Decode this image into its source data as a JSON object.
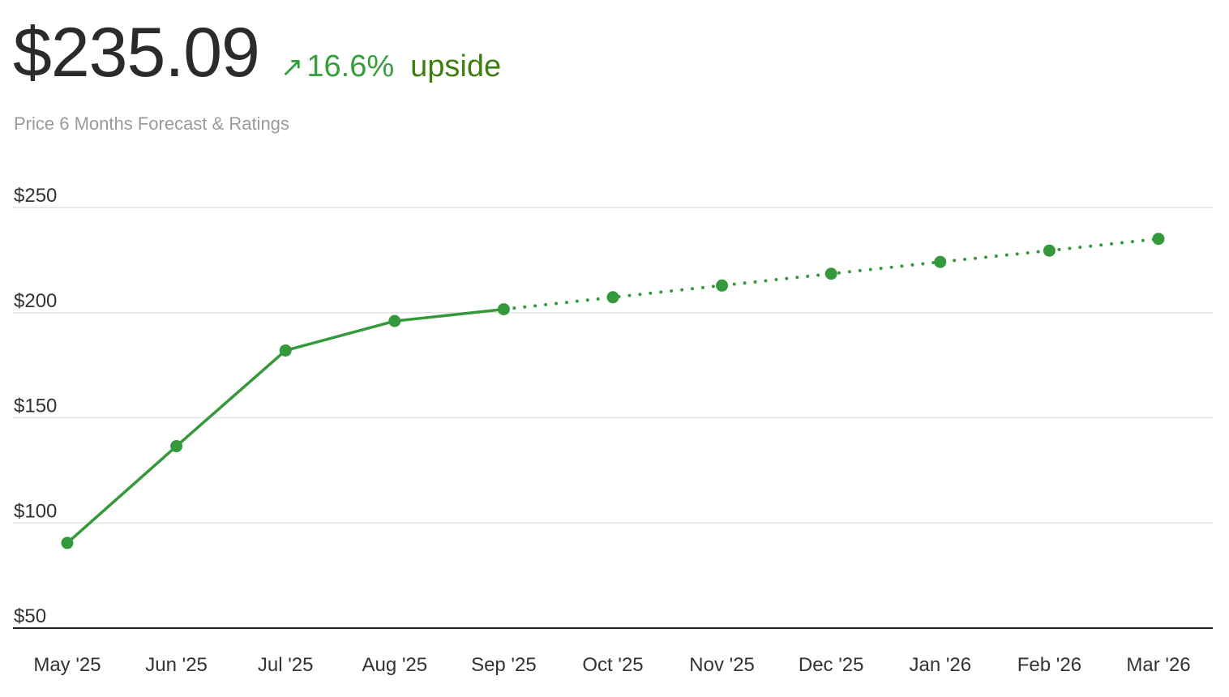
{
  "header": {
    "price": "$235.09",
    "arrow": "↗",
    "change": "16.6%",
    "upside_label": "upside",
    "subtitle": "Price 6 Months Forecast & Ratings"
  },
  "colors": {
    "line": "#34993a",
    "grid": "#e2e2e2",
    "axis": "#222222",
    "text": "#333333"
  },
  "chart_data": {
    "type": "line",
    "categories": [
      "May '25",
      "Jun '25",
      "Jul '25",
      "Aug '25",
      "Sep '25",
      "Oct '25",
      "Nov '25",
      "Dec '25",
      "Jan '26",
      "Feb '26",
      "Mar '26"
    ],
    "series": [
      {
        "style": "solid",
        "values": [
          90.5,
          136.5,
          182,
          196,
          201.6,
          null,
          null,
          null,
          null,
          null,
          null
        ]
      },
      {
        "style": "dotted",
        "values": [
          null,
          null,
          null,
          null,
          201.6,
          207.3,
          212.9,
          218.5,
          224.1,
          229.5,
          235.09
        ]
      }
    ],
    "yticks": [
      {
        "value": 250,
        "label": "$250"
      },
      {
        "value": 200,
        "label": "$200"
      },
      {
        "value": 150,
        "label": "$150"
      },
      {
        "value": 100,
        "label": "$100"
      },
      {
        "value": 50,
        "label": "$50"
      }
    ],
    "ylim": [
      50,
      250
    ],
    "grid": true,
    "legend": "none"
  }
}
